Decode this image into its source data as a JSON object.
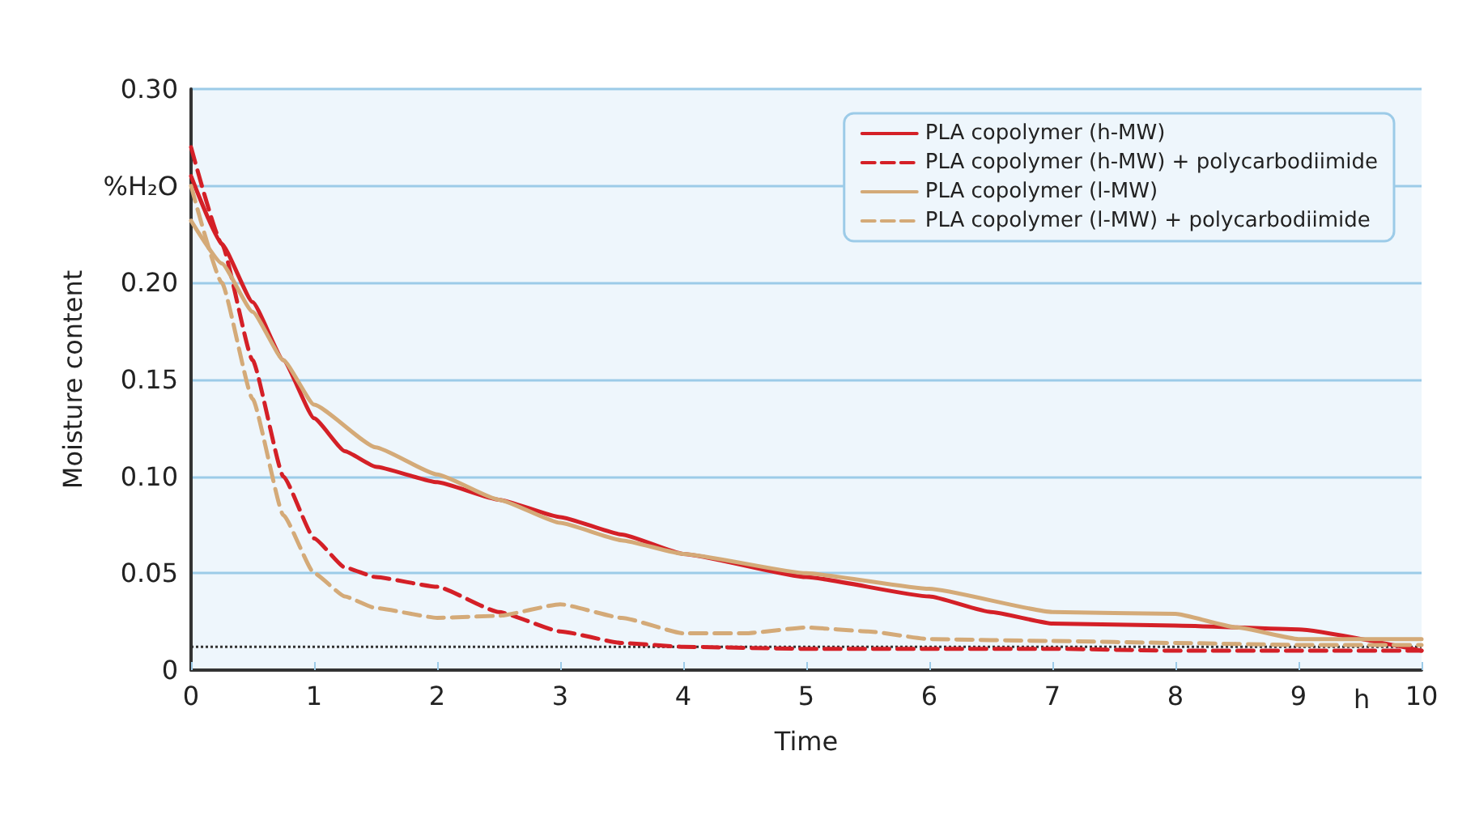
{
  "chart_data": {
    "type": "line",
    "xlabel": "Time",
    "ylabel": "Moisture content",
    "annotations": [
      "h"
    ],
    "xlim": [
      0,
      10
    ],
    "xticks": [
      0,
      1,
      2,
      3,
      4,
      5,
      6,
      7,
      8,
      9,
      10
    ],
    "ylim": [
      0,
      0.3
    ],
    "yticks": [
      {
        "value": 0,
        "label": "0"
      },
      {
        "value": 0.05,
        "label": "0.05"
      },
      {
        "value": 0.1,
        "label": "0.10"
      },
      {
        "value": 0.15,
        "label": "0.15"
      },
      {
        "value": 0.2,
        "label": "0.20"
      },
      {
        "value": 0.25,
        "label": "%H₂O"
      },
      {
        "value": 0.3,
        "label": "0.30"
      }
    ],
    "grid": "y",
    "legend": "top right",
    "marker": "none",
    "ref_lines": [
      {
        "axis": "y",
        "value": 0.012,
        "color": "#333333",
        "line_style": "dotted"
      }
    ],
    "series": [
      {
        "name": "PLA copolymer (h-MW)",
        "color": "#d42027",
        "line_style": "solid",
        "x": [
          0,
          0.25,
          0.5,
          0.75,
          1,
          1.25,
          1.5,
          2,
          2.5,
          3,
          3.5,
          4,
          5,
          6,
          6.5,
          7,
          8,
          9,
          10
        ],
        "values": [
          0.255,
          0.22,
          0.19,
          0.16,
          0.13,
          0.113,
          0.105,
          0.097,
          0.088,
          0.079,
          0.07,
          0.06,
          0.048,
          0.038,
          0.03,
          0.024,
          0.023,
          0.021,
          0.01
        ]
      },
      {
        "name": "PLA copolymer (h-MW) + polycarbodiimide",
        "color": "#d42027",
        "line_style": "dashed",
        "x": [
          0,
          0.25,
          0.5,
          0.75,
          1,
          1.25,
          1.5,
          2,
          2.5,
          3,
          3.5,
          4,
          5,
          6,
          7,
          8,
          9,
          10
        ],
        "values": [
          0.27,
          0.22,
          0.16,
          0.1,
          0.068,
          0.053,
          0.048,
          0.043,
          0.03,
          0.02,
          0.014,
          0.012,
          0.011,
          0.011,
          0.011,
          0.01,
          0.01,
          0.01
        ]
      },
      {
        "name": "PLA copolymer (l-MW)",
        "color": "#d4aa78",
        "line_style": "solid",
        "x": [
          0,
          0.25,
          0.5,
          0.75,
          1,
          1.5,
          2,
          2.5,
          3,
          3.5,
          4,
          5,
          6,
          7,
          8,
          8.5,
          9,
          10
        ],
        "values": [
          0.232,
          0.21,
          0.185,
          0.16,
          0.137,
          0.115,
          0.101,
          0.088,
          0.076,
          0.067,
          0.06,
          0.05,
          0.042,
          0.03,
          0.029,
          0.022,
          0.016,
          0.016
        ]
      },
      {
        "name": "PLA copolymer (l-MW) + polycarbodiimide",
        "color": "#d4aa78",
        "line_style": "dashed",
        "x": [
          0,
          0.25,
          0.5,
          0.75,
          1,
          1.25,
          1.5,
          2,
          2.5,
          3,
          3.5,
          4,
          4.5,
          5,
          5.5,
          6,
          7,
          8,
          9,
          10
        ],
        "values": [
          0.25,
          0.2,
          0.14,
          0.08,
          0.05,
          0.038,
          0.032,
          0.027,
          0.028,
          0.034,
          0.027,
          0.019,
          0.019,
          0.022,
          0.02,
          0.016,
          0.015,
          0.014,
          0.013,
          0.013
        ]
      }
    ]
  }
}
